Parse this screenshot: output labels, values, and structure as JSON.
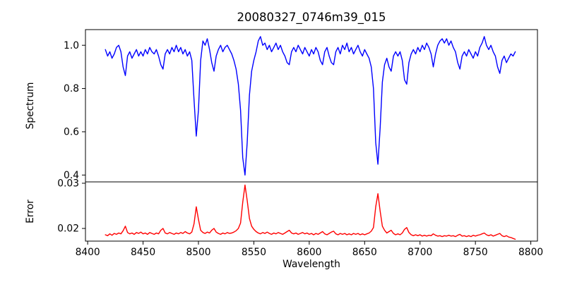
{
  "figure": {
    "title": "20080327_0746m39_015",
    "background": "#ffffff",
    "axis_color": "#000000"
  },
  "chart_data": {
    "type": "line",
    "title": "20080327_0746m39_015",
    "xlabel": "Wavelength",
    "grid": false,
    "legend": "none",
    "xlim": [
      8398,
      8806
    ],
    "x_ticks": [
      8400,
      8450,
      8500,
      8550,
      8600,
      8650,
      8700,
      8750,
      8800
    ],
    "x_tick_labels": [
      "8400",
      "8450",
      "8500",
      "8550",
      "8600",
      "8650",
      "8700",
      "8750",
      "8800"
    ],
    "subplots": [
      {
        "name": "spectrum",
        "ylabel": "Spectrum",
        "line_color": "#0000ff",
        "ylim": [
          0.3683,
          1.0724
        ],
        "y_ticks": [
          0.4,
          0.6,
          0.8,
          1.0
        ],
        "y_tick_labels": [
          "0.4",
          "0.6",
          "0.8",
          "1.0"
        ],
        "absorption_line_centers": [
          8498,
          8542,
          8662
        ],
        "absorption_line_depths": [
          0.58,
          0.4,
          0.45
        ]
      },
      {
        "name": "error",
        "ylabel": "Error",
        "line_color": "#ff0000",
        "ylim": [
          0.0172,
          0.0303
        ],
        "y_ticks": [
          0.02,
          0.03
        ],
        "y_tick_labels": [
          "0.02",
          "0.03"
        ],
        "peak_centers": [
          8498,
          8542,
          8662
        ],
        "peak_values": [
          0.0248,
          0.0296,
          0.0277
        ]
      }
    ],
    "wavelength": [
      8416,
      8418,
      8420,
      8422,
      8424,
      8426,
      8428,
      8430,
      8432,
      8434,
      8436,
      8438,
      8440,
      8442,
      8444,
      8446,
      8448,
      8450,
      8452,
      8454,
      8456,
      8458,
      8460,
      8462,
      8464,
      8466,
      8468,
      8470,
      8472,
      8474,
      8476,
      8478,
      8480,
      8482,
      8484,
      8486,
      8488,
      8490,
      8492,
      8494,
      8496,
      8498,
      8500,
      8502,
      8504,
      8506,
      8508,
      8510,
      8512,
      8514,
      8516,
      8518,
      8520,
      8522,
      8524,
      8526,
      8528,
      8530,
      8532,
      8534,
      8536,
      8538,
      8540,
      8542,
      8544,
      8546,
      8548,
      8550,
      8552,
      8554,
      8556,
      8558,
      8560,
      8562,
      8564,
      8566,
      8568,
      8570,
      8572,
      8574,
      8576,
      8578,
      8580,
      8582,
      8584,
      8586,
      8588,
      8590,
      8592,
      8594,
      8596,
      8598,
      8600,
      8602,
      8604,
      8606,
      8608,
      8610,
      8612,
      8614,
      8616,
      8618,
      8620,
      8622,
      8624,
      8626,
      8628,
      8630,
      8632,
      8634,
      8636,
      8638,
      8640,
      8642,
      8644,
      8646,
      8648,
      8650,
      8652,
      8654,
      8656,
      8658,
      8660,
      8662,
      8664,
      8666,
      8668,
      8670,
      8672,
      8674,
      8676,
      8678,
      8680,
      8682,
      8684,
      8686,
      8688,
      8690,
      8692,
      8694,
      8696,
      8698,
      8700,
      8702,
      8704,
      8706,
      8708,
      8710,
      8712,
      8714,
      8716,
      8718,
      8720,
      8722,
      8724,
      8726,
      8728,
      8730,
      8732,
      8734,
      8736,
      8738,
      8740,
      8742,
      8744,
      8746,
      8748,
      8750,
      8752,
      8754,
      8756,
      8758,
      8760,
      8762,
      8764,
      8766,
      8768,
      8770,
      8772,
      8774,
      8776,
      8778,
      8780,
      8782,
      8784,
      8786
    ],
    "series": [
      {
        "name": "Spectrum",
        "values": [
          0.98,
          0.95,
          0.97,
          0.94,
          0.96,
          0.99,
          1.0,
          0.97,
          0.9,
          0.86,
          0.95,
          0.97,
          0.94,
          0.96,
          0.98,
          0.95,
          0.97,
          0.95,
          0.98,
          0.96,
          0.99,
          0.97,
          0.96,
          0.98,
          0.95,
          0.91,
          0.89,
          0.96,
          0.98,
          0.96,
          0.99,
          0.97,
          1.0,
          0.97,
          0.99,
          0.96,
          0.98,
          0.95,
          0.97,
          0.93,
          0.75,
          0.58,
          0.7,
          0.93,
          1.02,
          1.0,
          1.03,
          0.98,
          0.92,
          0.88,
          0.95,
          0.98,
          1.0,
          0.97,
          0.99,
          1.0,
          0.98,
          0.96,
          0.93,
          0.89,
          0.82,
          0.7,
          0.48,
          0.4,
          0.55,
          0.77,
          0.88,
          0.93,
          0.97,
          1.02,
          1.04,
          1.0,
          1.01,
          0.98,
          1.0,
          0.97,
          0.99,
          1.01,
          0.98,
          1.0,
          0.97,
          0.95,
          0.92,
          0.91,
          0.97,
          0.99,
          0.97,
          1.0,
          0.98,
          0.96,
          0.99,
          0.97,
          0.95,
          0.98,
          0.96,
          0.99,
          0.97,
          0.93,
          0.91,
          0.97,
          0.99,
          0.95,
          0.92,
          0.91,
          0.97,
          0.99,
          0.96,
          1.0,
          0.98,
          1.01,
          0.97,
          0.99,
          0.96,
          0.98,
          1.0,
          0.97,
          0.95,
          0.98,
          0.96,
          0.94,
          0.9,
          0.8,
          0.55,
          0.45,
          0.62,
          0.83,
          0.91,
          0.94,
          0.9,
          0.88,
          0.95,
          0.97,
          0.95,
          0.97,
          0.93,
          0.84,
          0.82,
          0.92,
          0.96,
          0.98,
          0.96,
          0.99,
          0.97,
          1.0,
          0.98,
          1.01,
          0.99,
          0.96,
          0.9,
          0.96,
          1.0,
          1.02,
          1.03,
          1.01,
          1.03,
          1.0,
          1.02,
          0.99,
          0.97,
          0.92,
          0.89,
          0.95,
          0.97,
          0.95,
          0.98,
          0.96,
          0.94,
          0.97,
          0.95,
          0.99,
          1.01,
          1.04,
          1.0,
          0.98,
          1.0,
          0.97,
          0.95,
          0.9,
          0.87,
          0.93,
          0.95,
          0.92,
          0.94,
          0.96,
          0.95,
          0.97
        ]
      },
      {
        "name": "Error",
        "values": [
          0.0186,
          0.0184,
          0.0188,
          0.0185,
          0.0189,
          0.0187,
          0.019,
          0.0188,
          0.0195,
          0.0205,
          0.0191,
          0.0188,
          0.019,
          0.0187,
          0.0191,
          0.0189,
          0.0192,
          0.0188,
          0.019,
          0.0187,
          0.0191,
          0.0189,
          0.0187,
          0.019,
          0.0188,
          0.0196,
          0.02,
          0.019,
          0.0188,
          0.0191,
          0.0189,
          0.0187,
          0.019,
          0.0188,
          0.0191,
          0.0189,
          0.0193,
          0.019,
          0.0188,
          0.0192,
          0.021,
          0.0248,
          0.022,
          0.0196,
          0.0191,
          0.0189,
          0.0192,
          0.019,
          0.0196,
          0.02,
          0.0192,
          0.0189,
          0.0187,
          0.019,
          0.0188,
          0.0191,
          0.0189,
          0.019,
          0.0192,
          0.0195,
          0.02,
          0.0212,
          0.0258,
          0.0296,
          0.0262,
          0.0222,
          0.0205,
          0.0198,
          0.0193,
          0.019,
          0.0188,
          0.0191,
          0.0189,
          0.0192,
          0.0189,
          0.0187,
          0.019,
          0.0188,
          0.0191,
          0.0189,
          0.0187,
          0.019,
          0.0193,
          0.0196,
          0.019,
          0.0188,
          0.019,
          0.0187,
          0.0189,
          0.0191,
          0.0188,
          0.019,
          0.0187,
          0.0189,
          0.0186,
          0.0189,
          0.0187,
          0.019,
          0.0193,
          0.0188,
          0.0186,
          0.0189,
          0.0192,
          0.0194,
          0.0188,
          0.0186,
          0.0189,
          0.0187,
          0.0189,
          0.0186,
          0.0188,
          0.0186,
          0.0189,
          0.0187,
          0.0189,
          0.0186,
          0.0188,
          0.0186,
          0.0188,
          0.019,
          0.0194,
          0.0202,
          0.0248,
          0.0277,
          0.0238,
          0.0205,
          0.0196,
          0.019,
          0.0193,
          0.0196,
          0.0189,
          0.0186,
          0.0188,
          0.0186,
          0.019,
          0.0198,
          0.0202,
          0.0191,
          0.0186,
          0.0184,
          0.0186,
          0.0184,
          0.0186,
          0.0183,
          0.0185,
          0.0183,
          0.0185,
          0.0184,
          0.0188,
          0.0185,
          0.0183,
          0.0184,
          0.0182,
          0.0184,
          0.0183,
          0.0185,
          0.0183,
          0.0184,
          0.0182,
          0.0185,
          0.0187,
          0.0183,
          0.0184,
          0.0182,
          0.0184,
          0.0182,
          0.0185,
          0.0183,
          0.0185,
          0.0186,
          0.0188,
          0.019,
          0.0186,
          0.0184,
          0.0186,
          0.0183,
          0.0185,
          0.0187,
          0.0189,
          0.0184,
          0.0182,
          0.0184,
          0.0181,
          0.018,
          0.0178,
          0.0176
        ]
      }
    ]
  }
}
